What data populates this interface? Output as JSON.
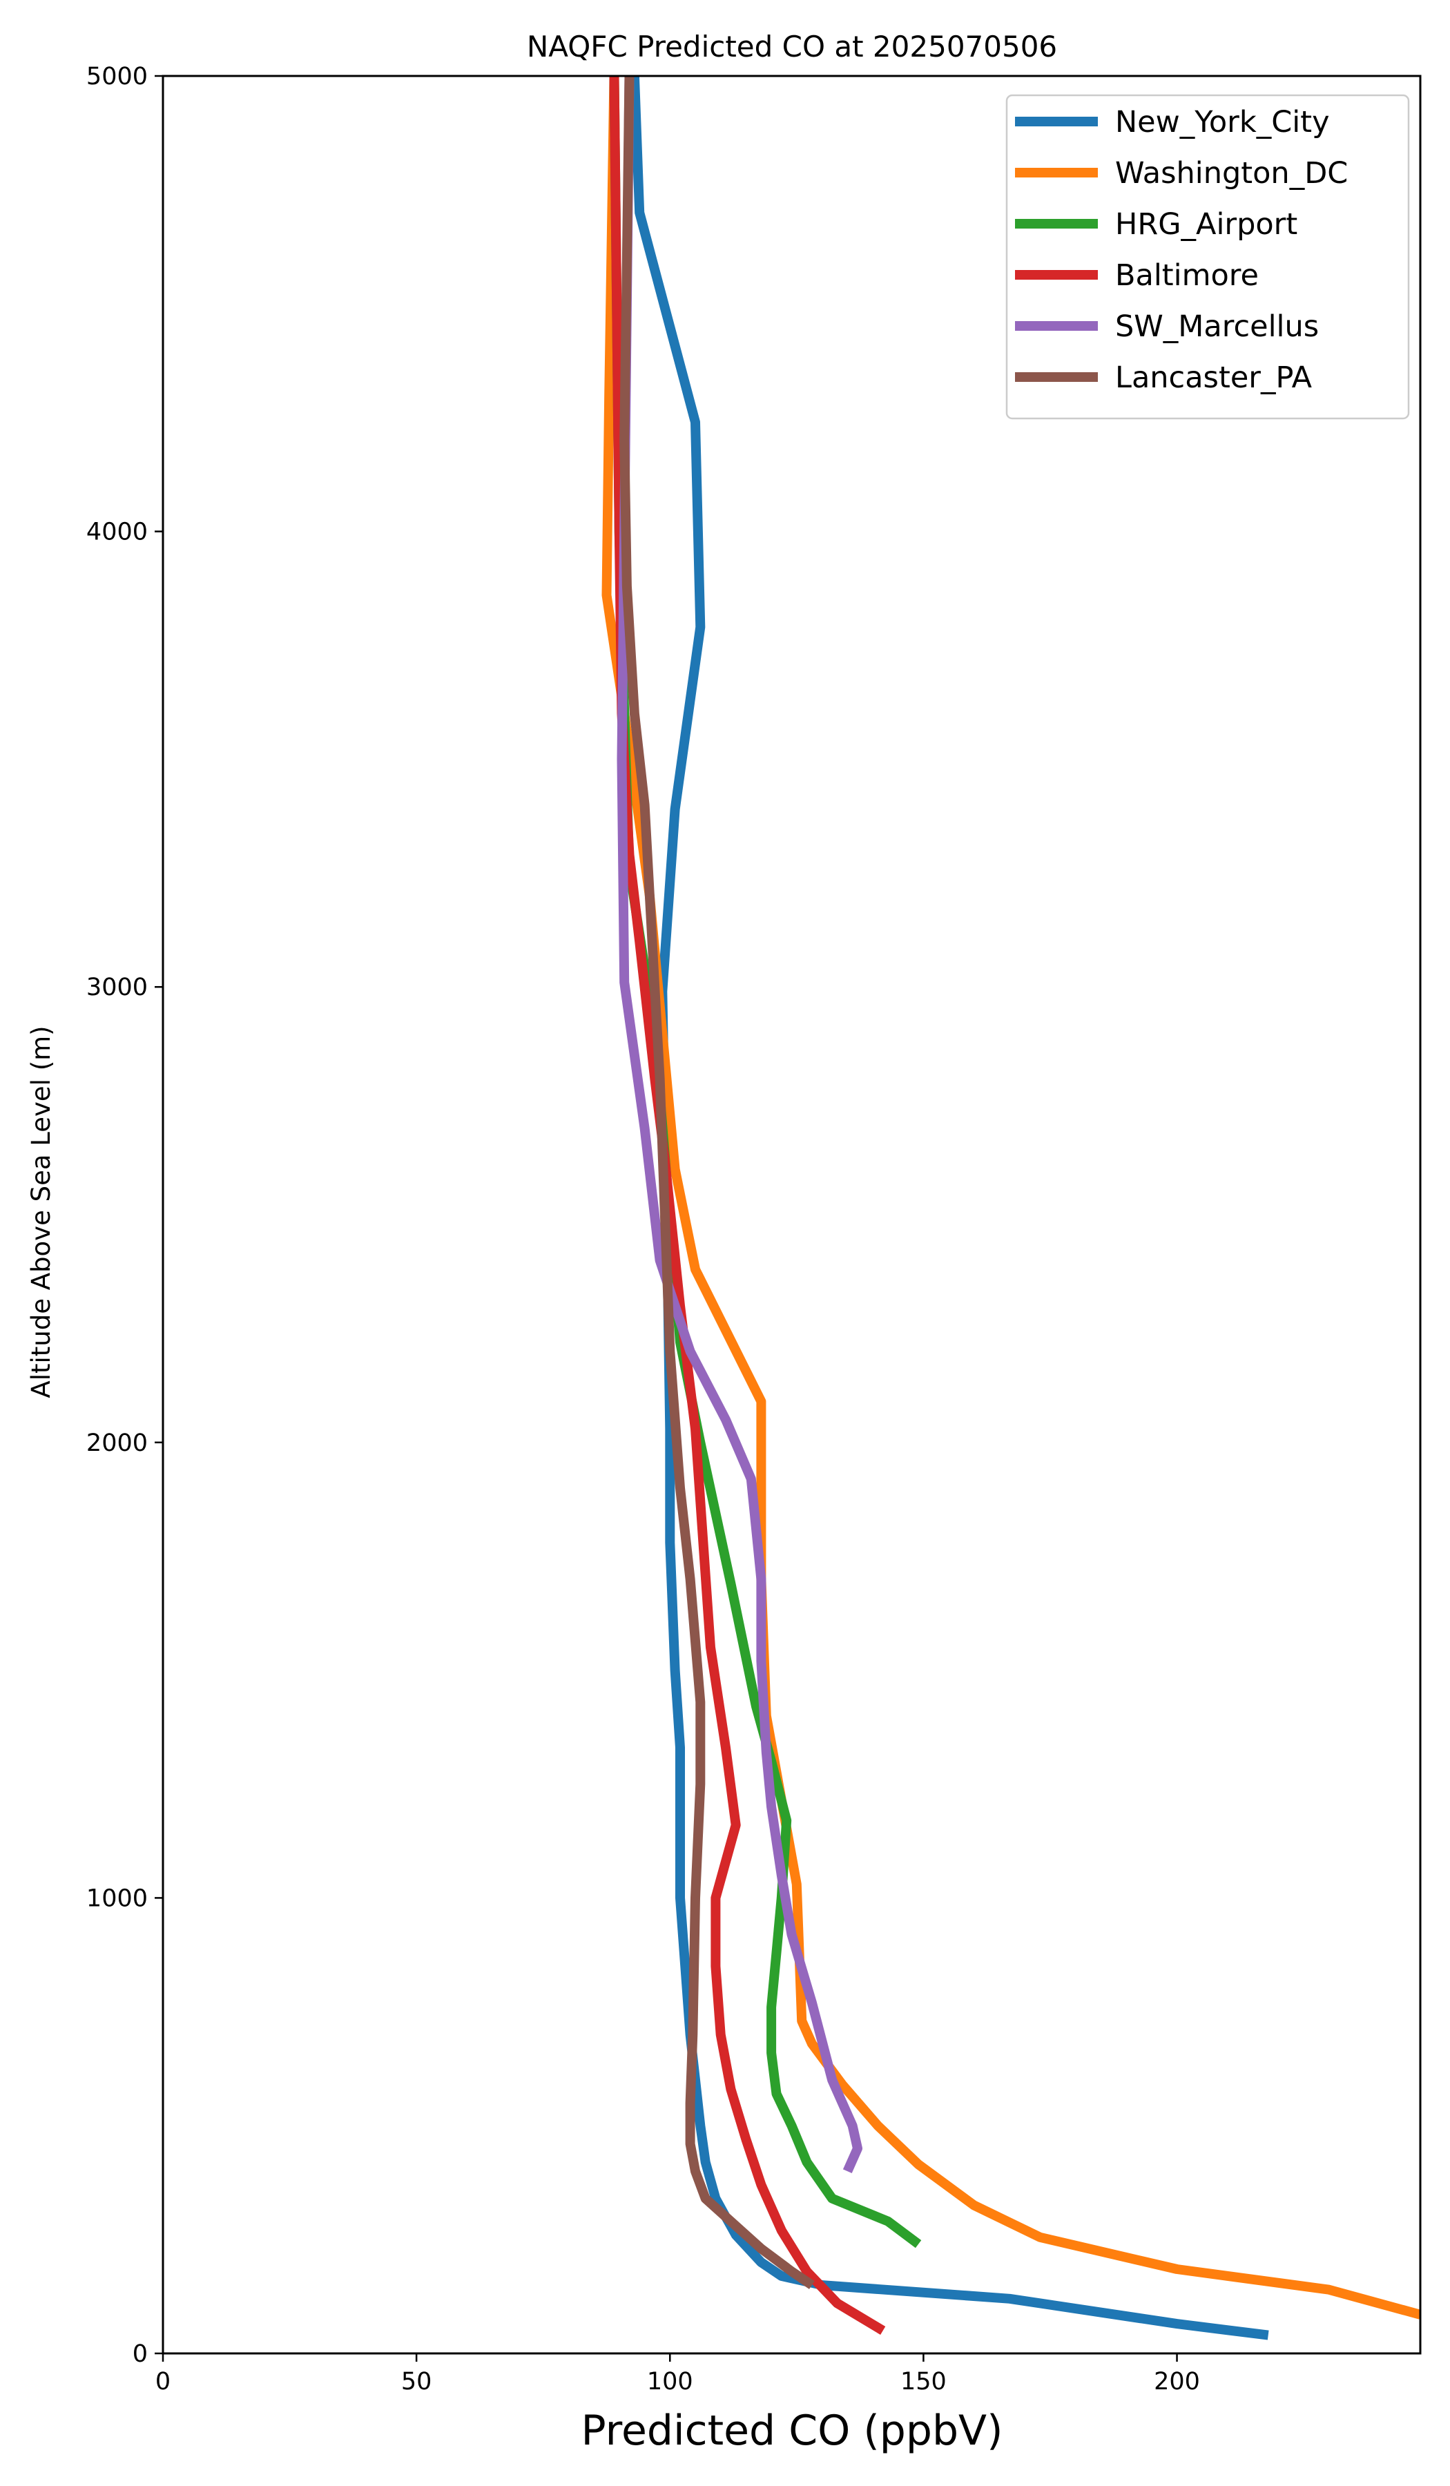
{
  "chart_data": {
    "type": "line",
    "title": "NAQFC Predicted CO at 2025070506",
    "xlabel": "Predicted CO (ppbV)",
    "ylabel": "Altitude Above Sea Level (m)",
    "xlim": [
      0,
      248
    ],
    "ylim": [
      0,
      5000
    ],
    "xticks": [
      0,
      50,
      100,
      150,
      200
    ],
    "yticks": [
      0,
      1000,
      2000,
      3000,
      4000,
      5000
    ],
    "grid": false,
    "legend_position": "top-right",
    "series": [
      {
        "name": "New_York_City",
        "color": "#1f77b4",
        "points": [
          [
            218,
            40
          ],
          [
            200,
            65
          ],
          [
            167,
            120
          ],
          [
            130,
            150
          ],
          [
            122,
            170
          ],
          [
            118,
            200
          ],
          [
            113,
            260
          ],
          [
            111,
            300
          ],
          [
            109,
            340
          ],
          [
            107,
            420
          ],
          [
            106,
            500
          ],
          [
            105,
            600
          ],
          [
            104,
            700
          ],
          [
            103,
            850
          ],
          [
            102,
            1000
          ],
          [
            102,
            1100
          ],
          [
            102,
            1330
          ],
          [
            101,
            1500
          ],
          [
            100,
            1780
          ],
          [
            100,
            2030
          ],
          [
            99.5,
            2400
          ],
          [
            99,
            2700
          ],
          [
            98.5,
            2990
          ],
          [
            101,
            3390
          ],
          [
            106,
            3790
          ],
          [
            105,
            4240
          ],
          [
            94,
            4700
          ],
          [
            93,
            5000
          ]
        ]
      },
      {
        "name": "Washington_DC",
        "color": "#ff7f0e",
        "points": [
          [
            248,
            85
          ],
          [
            230,
            140
          ],
          [
            200,
            185
          ],
          [
            173,
            255
          ],
          [
            160,
            325
          ],
          [
            149,
            415
          ],
          [
            141,
            500
          ],
          [
            134,
            590
          ],
          [
            128,
            680
          ],
          [
            126,
            730
          ],
          [
            125,
            1030
          ],
          [
            119,
            1400
          ],
          [
            118,
            1700
          ],
          [
            118,
            2090
          ],
          [
            105,
            2380
          ],
          [
            101,
            2600
          ],
          [
            96,
            3200
          ],
          [
            91,
            3600
          ],
          [
            87.5,
            3860
          ],
          [
            88,
            4300
          ],
          [
            89,
            5000
          ]
        ]
      },
      {
        "name": "HRG_Airport",
        "color": "#2ca02c",
        "points": [
          [
            149,
            240
          ],
          [
            143,
            290
          ],
          [
            132,
            340
          ],
          [
            127,
            420
          ],
          [
            124,
            500
          ],
          [
            121,
            570
          ],
          [
            120,
            660
          ],
          [
            120,
            760
          ],
          [
            121,
            880
          ],
          [
            122,
            1000
          ],
          [
            123,
            1170
          ],
          [
            120,
            1300
          ],
          [
            117,
            1420
          ],
          [
            112,
            1690
          ],
          [
            106,
            2000
          ],
          [
            102,
            2220
          ],
          [
            97,
            2900
          ],
          [
            92,
            3260
          ],
          [
            91,
            3600
          ],
          [
            90,
            4000
          ],
          [
            89.5,
            4500
          ],
          [
            89,
            5000
          ]
        ]
      },
      {
        "name": "Baltimore",
        "color": "#d62728",
        "points": [
          [
            142,
            50
          ],
          [
            133,
            110
          ],
          [
            127,
            180
          ],
          [
            122,
            270
          ],
          [
            118,
            370
          ],
          [
            115,
            470
          ],
          [
            112,
            580
          ],
          [
            110,
            700
          ],
          [
            109,
            850
          ],
          [
            109,
            1000
          ],
          [
            113,
            1160
          ],
          [
            111,
            1330
          ],
          [
            108,
            1550
          ],
          [
            106,
            1870
          ],
          [
            105,
            2030
          ],
          [
            102,
            2300
          ],
          [
            99,
            2620
          ],
          [
            97,
            2800
          ],
          [
            94,
            3100
          ],
          [
            92,
            3290
          ],
          [
            90.5,
            3600
          ],
          [
            90,
            4000
          ],
          [
            89.5,
            4500
          ],
          [
            89,
            5000
          ]
        ]
      },
      {
        "name": "SW_Marcellus",
        "color": "#9467bd",
        "points": [
          [
            135,
            400
          ],
          [
            137,
            450
          ],
          [
            136,
            500
          ],
          [
            132,
            600
          ],
          [
            128,
            770
          ],
          [
            124,
            920
          ],
          [
            122,
            1050
          ],
          [
            120,
            1200
          ],
          [
            119,
            1320
          ],
          [
            118,
            1520
          ],
          [
            118,
            1700
          ],
          [
            116,
            1920
          ],
          [
            111,
            2050
          ],
          [
            104,
            2200
          ],
          [
            98,
            2400
          ],
          [
            95,
            2690
          ],
          [
            91,
            3010
          ],
          [
            90.5,
            3500
          ],
          [
            91,
            4000
          ],
          [
            91.5,
            4500
          ],
          [
            92,
            5000
          ]
        ]
      },
      {
        "name": "Lancaster_PA",
        "color": "#8c564b",
        "points": [
          [
            128,
            150
          ],
          [
            124,
            180
          ],
          [
            118,
            230
          ],
          [
            111,
            300
          ],
          [
            107,
            340
          ],
          [
            105,
            400
          ],
          [
            104,
            460
          ],
          [
            104,
            550
          ],
          [
            104.5,
            700
          ],
          [
            105,
            1000
          ],
          [
            106,
            1250
          ],
          [
            106,
            1430
          ],
          [
            104,
            1700
          ],
          [
            102,
            1900
          ],
          [
            100,
            2200
          ],
          [
            99,
            2500
          ],
          [
            98,
            2800
          ],
          [
            97,
            3000
          ],
          [
            95,
            3400
          ],
          [
            93,
            3600
          ],
          [
            91.5,
            3880
          ],
          [
            91,
            4200
          ],
          [
            91.5,
            4600
          ],
          [
            92,
            5000
          ]
        ]
      }
    ]
  }
}
